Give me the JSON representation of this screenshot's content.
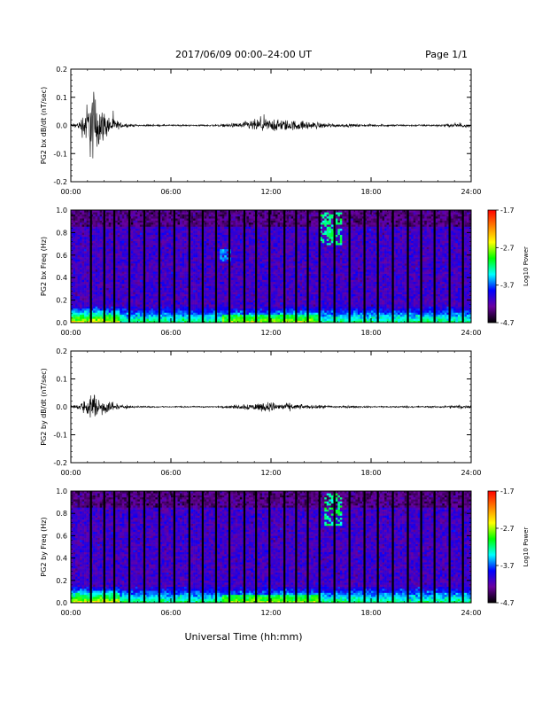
{
  "header": {
    "title": "2017/06/09  00:00–24:00 UT",
    "page": "Page 1/1"
  },
  "xlabel": "Universal Time (hh:mm)",
  "chart_data": [
    {
      "type": "line",
      "ylabel": "PG2 bx dB/dt (nT/sec)",
      "xlim": [
        0,
        24
      ],
      "ylim": [
        -0.2,
        0.2
      ],
      "x_ticks": [
        "00:00",
        "06:00",
        "12:00",
        "18:00",
        "24:00"
      ],
      "y_ticks": [
        "-0.2",
        "-0.1",
        "0.0",
        "0.1",
        "0.2"
      ],
      "envelope": {
        "x_hours": [
          0,
          0.5,
          1.0,
          1.3,
          1.6,
          2.0,
          2.5,
          3.0,
          4,
          6,
          8,
          9,
          10,
          11,
          12,
          13,
          14,
          15,
          16,
          18,
          20,
          22,
          23.5,
          24
        ],
        "amplitude": [
          0.008,
          0.02,
          0.12,
          0.2,
          0.12,
          0.07,
          0.04,
          0.012,
          0.004,
          0.004,
          0.004,
          0.006,
          0.012,
          0.03,
          0.032,
          0.028,
          0.022,
          0.014,
          0.008,
          0.006,
          0.005,
          0.005,
          0.012,
          0.006
        ]
      },
      "color": "#000000"
    },
    {
      "type": "heatmap",
      "ylabel": "PG2 bx Freq (Hz)",
      "xlim": [
        0,
        24
      ],
      "ylim": [
        0,
        1.0
      ],
      "x_ticks": [
        "00:00",
        "06:00",
        "12:00",
        "18:00",
        "24:00"
      ],
      "y_ticks": [
        "0.0",
        "0.2",
        "0.4",
        "0.6",
        "0.8",
        "1.0"
      ],
      "colorbar": {
        "label": "Log10 Power",
        "ticks": [
          "-1.7",
          "-2.7",
          "-3.7",
          "-4.7"
        ],
        "range": [
          -4.7,
          -1.7
        ],
        "colors": [
          "#000000",
          "#6a00a0",
          "#0000ff",
          "#00ffff",
          "#00ff00",
          "#ffff00",
          "#ff8000",
          "#ff0000"
        ]
      },
      "gap_hours": [
        1.2,
        2.0,
        2.6,
        3.5,
        4.4,
        5.3,
        6.2,
        7.1,
        7.9,
        8.7,
        9.5,
        10.4,
        11.1,
        11.9,
        12.8,
        13.5,
        14.2,
        14.9,
        15.8,
        16.7,
        17.6,
        18.4,
        19.3,
        20.2,
        21.0,
        21.8,
        22.7,
        23.5
      ],
      "features": [
        {
          "x_hours": [
            15.0,
            16.3
          ],
          "freq_hz": [
            0.7,
            0.98
          ],
          "level": -3.2
        },
        {
          "x_hours": [
            9.0,
            9.6
          ],
          "freq_hz": [
            0.55,
            0.65
          ],
          "level": -3.6
        }
      ]
    },
    {
      "type": "line",
      "ylabel": "PG2 by dB/dt (nT/sec)",
      "xlim": [
        0,
        24
      ],
      "ylim": [
        -0.2,
        0.2
      ],
      "x_ticks": [
        "00:00",
        "06:00",
        "12:00",
        "18:00",
        "24:00"
      ],
      "y_ticks": [
        "-0.2",
        "-0.1",
        "0.0",
        "0.1",
        "0.2"
      ],
      "envelope": {
        "x_hours": [
          0,
          0.5,
          1.0,
          1.3,
          1.6,
          2.0,
          2.5,
          3.0,
          4,
          6,
          8,
          9,
          10,
          11,
          12,
          13,
          14,
          15,
          16,
          18,
          20,
          22,
          23.5,
          24
        ],
        "amplitude": [
          0.006,
          0.012,
          0.05,
          0.07,
          0.05,
          0.04,
          0.025,
          0.01,
          0.004,
          0.003,
          0.003,
          0.004,
          0.01,
          0.02,
          0.025,
          0.016,
          0.01,
          0.008,
          0.006,
          0.004,
          0.004,
          0.004,
          0.01,
          0.005
        ]
      },
      "color": "#000000"
    },
    {
      "type": "heatmap",
      "ylabel": "PG2 by Freq (Hz)",
      "xlim": [
        0,
        24
      ],
      "ylim": [
        0,
        1.0
      ],
      "x_ticks": [
        "00:00",
        "06:00",
        "12:00",
        "18:00",
        "24:00"
      ],
      "y_ticks": [
        "0.0",
        "0.2",
        "0.4",
        "0.6",
        "0.8",
        "1.0"
      ],
      "colorbar": {
        "label": "Log10 Power",
        "ticks": [
          "-1.7",
          "-2.7",
          "-3.7",
          "-4.7"
        ],
        "range": [
          -4.7,
          -1.7
        ],
        "colors": [
          "#000000",
          "#6a00a0",
          "#0000ff",
          "#00ffff",
          "#00ff00",
          "#ffff00",
          "#ff8000",
          "#ff0000"
        ]
      },
      "gap_hours": [
        1.2,
        2.0,
        2.6,
        3.5,
        4.4,
        5.3,
        6.2,
        7.1,
        7.9,
        8.7,
        9.5,
        10.4,
        11.1,
        11.9,
        12.8,
        13.5,
        14.2,
        14.9,
        15.8,
        16.7,
        17.6,
        18.4,
        19.3,
        20.2,
        21.0,
        21.8,
        22.7,
        23.5
      ],
      "features": [
        {
          "x_hours": [
            15.2,
            16.3
          ],
          "freq_hz": [
            0.7,
            0.98
          ],
          "level": -3.2
        }
      ]
    }
  ]
}
